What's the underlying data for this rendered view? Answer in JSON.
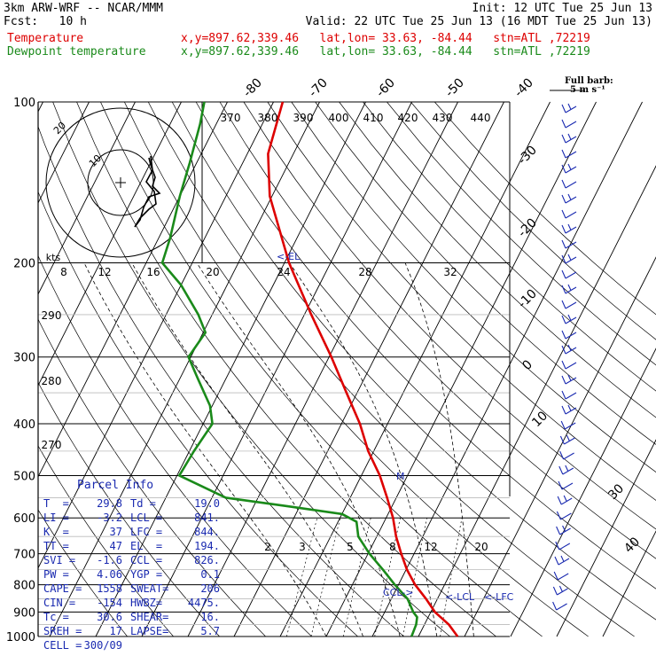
{
  "header": {
    "model": "3km ARW-WRF -- NCAR/MMM",
    "init": "Init: 12 UTC Tue 25 Jun 13",
    "fcst": "Fcst:   10 h",
    "valid": "Valid: 22 UTC Tue 25 Jun 13 (16 MDT Tue 25 Jun 13)",
    "temp_label": "Temperature",
    "dew_label": "Dewpoint temperature",
    "temp_info": "x,y=897.62,339.46   lat,lon= 33.63, -84.44   stn=ATL ,72219",
    "dew_info": "x,y=897.62,339.46   lat,lon= 33.63, -84.44   stn=ATL ,72219",
    "barb_legend_1": "Full barb:",
    "barb_legend_2": "5 m s⁻¹"
  },
  "colors": {
    "temperature": "#dd0000",
    "dewpoint": "#1a8a1a",
    "info_text": "#1a2ab0",
    "barbs": "#1a2ab0"
  },
  "chart_data": {
    "type": "line",
    "subtype": "skew-T log-P sounding",
    "pressure_ticks": [
      "100",
      "200",
      "300",
      "400",
      "500",
      "600",
      "700",
      "800",
      "900",
      "1000"
    ],
    "isotherm_labels_top": [
      "-80",
      "-70",
      "-60",
      "-50",
      "-40"
    ],
    "isotherm_labels_right": [
      "-30",
      "-20",
      "-10",
      "0",
      "10",
      "30",
      "40"
    ],
    "theta_labels": [
      "370",
      "380",
      "390",
      "400",
      "410",
      "420",
      "430",
      "440"
    ],
    "theta_side_labels": [
      "290",
      "280",
      "270"
    ],
    "mixing_ratio_labels": [
      "2",
      "3",
      "5",
      "8",
      "12",
      "20"
    ],
    "hodograph": {
      "units_label": "kts",
      "ring_labels": [
        "10",
        "20"
      ],
      "speed_ticks": [
        "8",
        "12",
        "16",
        "20",
        "24",
        "28",
        "32"
      ]
    },
    "annotations": [
      "<-EL",
      "<-LCL",
      "<-LFC",
      "CCL->",
      "M"
    ],
    "series": [
      {
        "name": "Temperature",
        "unit": "C",
        "points": [
          [
            1000,
            28.5
          ],
          [
            950,
            25.3
          ],
          [
            900,
            20.9
          ],
          [
            850,
            17.5
          ],
          [
            800,
            13.6
          ],
          [
            750,
            10.2
          ],
          [
            700,
            7.2
          ],
          [
            650,
            4.2
          ],
          [
            600,
            1.5
          ],
          [
            550,
            -2.0
          ],
          [
            500,
            -6.0
          ],
          [
            450,
            -11.2
          ],
          [
            400,
            -16.0
          ],
          [
            350,
            -22.3
          ],
          [
            300,
            -29.5
          ],
          [
            250,
            -38.5
          ],
          [
            200,
            -49.0
          ],
          [
            150,
            -60.5
          ],
          [
            125,
            -65.5
          ],
          [
            100,
            -68.0
          ]
        ]
      },
      {
        "name": "Dewpoint temperature",
        "unit": "C",
        "points": [
          [
            1000,
            18.5
          ],
          [
            950,
            18.2
          ],
          [
            920,
            17.6
          ],
          [
            900,
            16.2
          ],
          [
            850,
            13.5
          ],
          [
            800,
            9.2
          ],
          [
            750,
            5.0
          ],
          [
            700,
            0.3
          ],
          [
            650,
            -4.0
          ],
          [
            610,
            -6.0
          ],
          [
            590,
            -10.0
          ],
          [
            570,
            -23.0
          ],
          [
            550,
            -37.0
          ],
          [
            500,
            -49.5
          ],
          [
            450,
            -49.0
          ],
          [
            400,
            -48.0
          ],
          [
            370,
            -50.5
          ],
          [
            330,
            -56.0
          ],
          [
            300,
            -60.5
          ],
          [
            270,
            -59.5
          ],
          [
            250,
            -63.0
          ],
          [
            220,
            -70.0
          ],
          [
            200,
            -76.5
          ],
          [
            180,
            -77.5
          ],
          [
            150,
            -80.0
          ],
          [
            130,
            -81.5
          ],
          [
            110,
            -83.5
          ],
          [
            100,
            -85.0
          ]
        ]
      }
    ],
    "parcel_info": {
      "title": "Parcel Info",
      "rows": [
        [
          "T  =",
          "29.8",
          "Td =",
          "19.0"
        ],
        [
          "LI =",
          "-3.2",
          "LCL =",
          "841."
        ],
        [
          "K  =",
          "37",
          "LFC =",
          "844."
        ],
        [
          "TT =",
          "47",
          "EL  =",
          "194."
        ],
        [
          "SVI =",
          "-1.6",
          "CCL =",
          "826."
        ],
        [
          "PW =",
          "4.06",
          "YGP =",
          "0.1"
        ],
        [
          "CAPE =",
          "1558",
          "SWEAT=",
          "206"
        ],
        [
          "CIN =",
          "-154",
          "HWBZ=",
          "4475."
        ],
        [
          "Tc =",
          "30.6",
          "SHEAR=",
          "16."
        ],
        [
          "SREH =",
          "17",
          "LAPSE=",
          "5.7"
        ],
        [
          "CELL =",
          "300/09",
          "",
          ""
        ]
      ]
    }
  }
}
